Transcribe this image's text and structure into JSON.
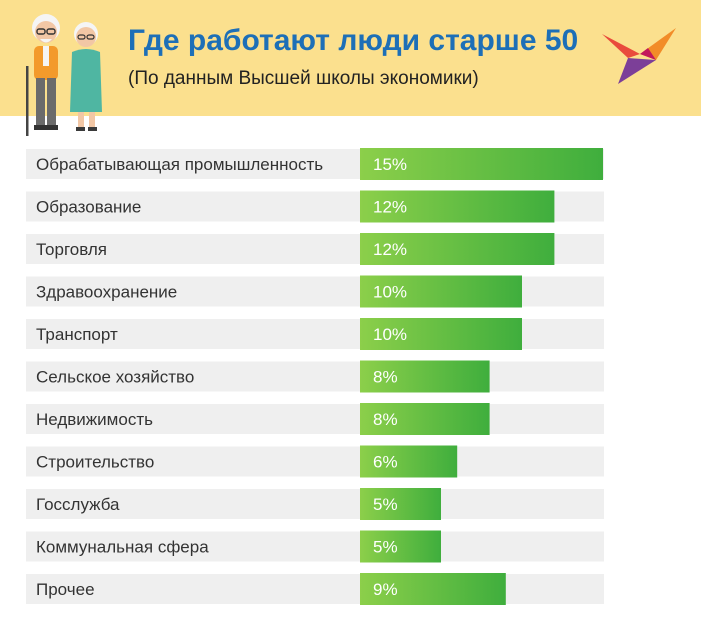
{
  "header": {
    "title": "Где работают люди старше 50",
    "subtitle": "(По данным Высшей школы экономики)"
  },
  "colors": {
    "header_bg": "#fbe08e",
    "title": "#1d6fb7",
    "row_bg": "#efefef",
    "bar_start": "#8ccf4a",
    "bar_end": "#3fae3d"
  },
  "icons": [
    "elderly-couple-illustration",
    "bird-logo-icon"
  ],
  "chart_data": {
    "type": "bar",
    "orientation": "horizontal",
    "categories": [
      "Обрабатывающая промышленность",
      "Образование",
      "Торговля",
      "Здравоохранение",
      "Транспорт",
      "Сельское хозяйство",
      "Недвижимость",
      "Строительство",
      "Госслужба",
      "Коммунальная сфера",
      "Прочее"
    ],
    "values": [
      15,
      12,
      12,
      10,
      10,
      8,
      8,
      6,
      5,
      5,
      9
    ],
    "value_labels": [
      "15%",
      "12%",
      "12%",
      "10%",
      "10%",
      "8%",
      "8%",
      "6%",
      "5%",
      "5%",
      "9%"
    ],
    "unit": "%",
    "title": "Где работают люди старше 50",
    "subtitle": "(По данным Высшей школы экономики)",
    "xlabel": "",
    "ylabel": "",
    "grid": false,
    "legend": "none"
  }
}
